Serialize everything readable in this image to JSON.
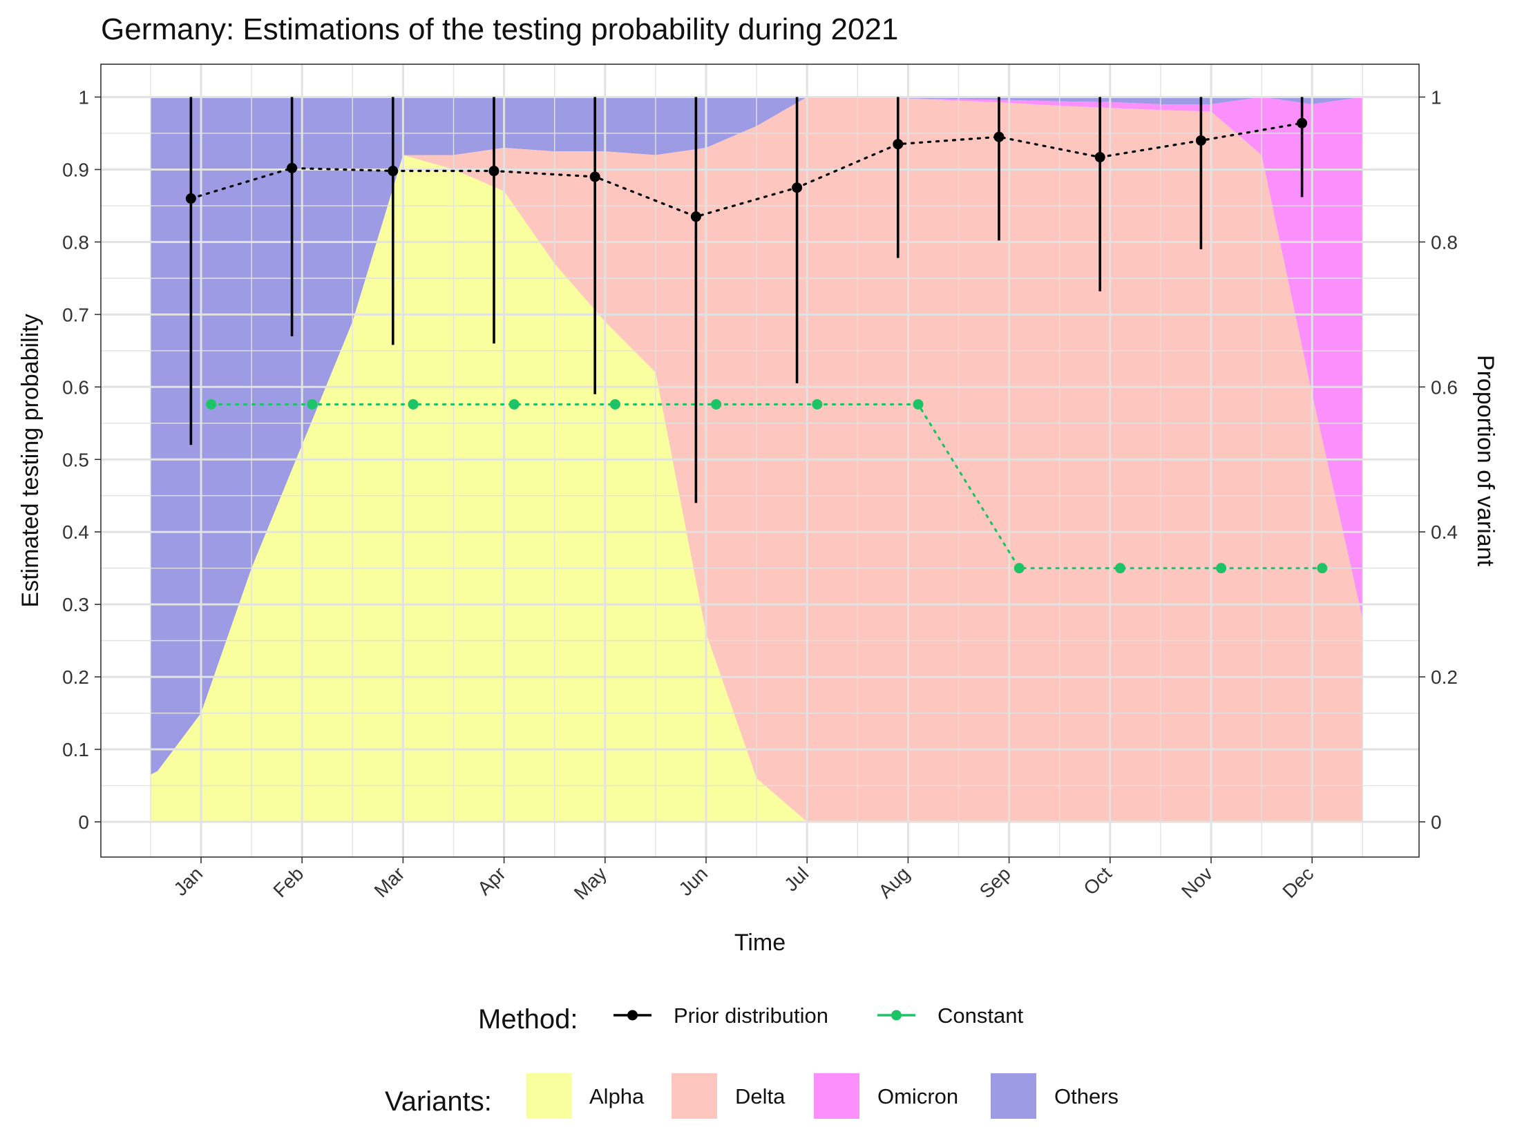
{
  "chart_data": {
    "type": "area",
    "title": "Germany: Estimations of the testing probability during 2021",
    "xlabel": "Time",
    "ylabel": "Estimated testing probability",
    "y2label": "Proportion of variant",
    "ylim": [
      -0.05,
      1.05
    ],
    "y_ticks": [
      "0",
      "0.1",
      "0.2",
      "0.3",
      "0.4",
      "0.5",
      "0.6",
      "0.7",
      "0.8",
      "0.9",
      "1"
    ],
    "y2_ticks": [
      "0",
      "0.2",
      "0.4",
      "0.6",
      "0.8",
      "1"
    ],
    "x_tick_labels": [
      "Jan",
      "Feb",
      "Mar",
      "Apr",
      "May",
      "Jun",
      "Jul",
      "Aug",
      "Sep",
      "Oct",
      "Nov",
      "Dec"
    ],
    "grid": true,
    "legend_position": "bottom",
    "variants": {
      "title": "Variants:",
      "items": [
        {
          "name": "Alpha",
          "color": "#f9fe9e"
        },
        {
          "name": "Delta",
          "color": "#fdc6be"
        },
        {
          "name": "Omicron",
          "color": "#fb8ffb"
        },
        {
          "name": "Others",
          "color": "#9d9be3"
        }
      ],
      "x": [
        -0.5,
        -0.43,
        0.0,
        0.5,
        1.0,
        1.5,
        2.0,
        2.5,
        3.0,
        3.5,
        4.0,
        4.5,
        5.0,
        5.5,
        6.0,
        6.5,
        7.0,
        7.5,
        8.0,
        8.5,
        9.0,
        9.5,
        10.0,
        10.5,
        11.0,
        11.5
      ],
      "alpha": [
        0.065,
        0.07,
        0.15,
        0.35,
        0.52,
        0.69,
        0.92,
        0.9,
        0.87,
        0.77,
        0.69,
        0.62,
        0.26,
        0.06,
        0.0,
        0.0,
        0.0,
        0.0,
        0.0,
        0.0,
        0.0,
        0.0,
        0.0,
        0.0,
        0.0,
        0.0
      ],
      "delta": [
        0.0,
        0.0,
        0.0,
        0.0,
        0.0,
        0.0,
        0.0,
        0.02,
        0.06,
        0.155,
        0.235,
        0.3,
        0.67,
        0.9,
        1.0,
        1.0,
        0.998,
        0.995,
        0.992,
        0.988,
        0.985,
        0.982,
        0.98,
        0.92,
        0.59,
        0.28
      ],
      "omicron": [
        0.0,
        0.0,
        0.0,
        0.0,
        0.0,
        0.0,
        0.0,
        0.0,
        0.0,
        0.0,
        0.0,
        0.0,
        0.0,
        0.0,
        0.0,
        0.0,
        0.0,
        0.002,
        0.004,
        0.006,
        0.008,
        0.008,
        0.01,
        0.08,
        0.4,
        0.72
      ]
    },
    "method": {
      "title": "Method:",
      "series": [
        {
          "name": "Prior distribution",
          "color": "#000000",
          "x": [
            -0.1,
            0.9,
            1.9,
            2.9,
            3.9,
            4.9,
            5.9,
            6.9,
            7.9,
            8.9,
            9.9,
            10.9
          ],
          "y": [
            0.86,
            0.902,
            0.898,
            0.898,
            0.89,
            0.835,
            0.875,
            0.935,
            0.945,
            0.917,
            0.94,
            0.964
          ],
          "lower": [
            0.52,
            0.67,
            0.658,
            0.66,
            0.59,
            0.44,
            0.605,
            0.778,
            0.802,
            0.732,
            0.79,
            0.862
          ],
          "upper": [
            1.0,
            1.0,
            1.0,
            1.0,
            1.0,
            1.0,
            1.0,
            1.0,
            1.0,
            1.0,
            1.0,
            1.0
          ]
        },
        {
          "name": "Constant",
          "color": "#1dc467",
          "x": [
            0.1,
            1.1,
            2.1,
            3.1,
            4.1,
            5.1,
            6.1,
            7.1,
            8.1,
            9.1,
            10.1,
            11.1
          ],
          "y": [
            0.576,
            0.576,
            0.576,
            0.576,
            0.576,
            0.576,
            0.576,
            0.576,
            0.35,
            0.35,
            0.35,
            0.35
          ]
        }
      ]
    }
  }
}
